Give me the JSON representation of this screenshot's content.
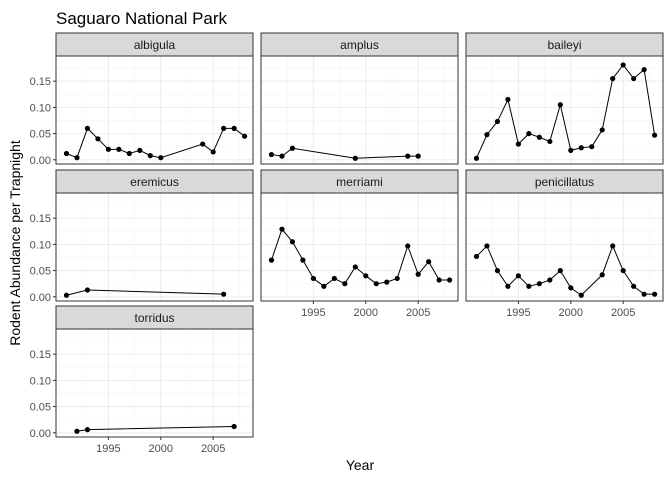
{
  "chart_data": {
    "type": "line",
    "title": "Saguaro National Park",
    "xlabel": "Year",
    "ylabel": "Rodent Abundance per Trapnight",
    "xlim": [
      1990,
      2008.8
    ],
    "ylim": [
      -0.008,
      0.198
    ],
    "x_ticks": [
      1995,
      2000,
      2005
    ],
    "y_ticks": [
      0.0,
      0.05,
      0.1,
      0.15
    ],
    "y_tick_labels": [
      "0.00",
      "0.05",
      "0.10",
      "0.15"
    ],
    "grid": true,
    "facets": [
      {
        "name": "albigula",
        "x": [
          1991,
          1992,
          1993,
          1994,
          1995,
          1996,
          1997,
          1998,
          1999,
          2000,
          2004,
          2005,
          2006,
          2007,
          2008
        ],
        "y": [
          0.012,
          0.004,
          0.06,
          0.04,
          0.02,
          0.02,
          0.012,
          0.018,
          0.008,
          0.004,
          0.03,
          0.015,
          0.06,
          0.06,
          0.045
        ]
      },
      {
        "name": "amplus",
        "x": [
          1991,
          1992,
          1993,
          1999,
          2004,
          2005
        ],
        "y": [
          0.01,
          0.007,
          0.022,
          0.003,
          0.007,
          0.007
        ]
      },
      {
        "name": "baileyi",
        "x": [
          1991,
          1992,
          1993,
          1994,
          1995,
          1996,
          1997,
          1998,
          1999,
          2000,
          2001,
          2002,
          2003,
          2004,
          2005,
          2006,
          2007,
          2008
        ],
        "y": [
          0.003,
          0.048,
          0.073,
          0.115,
          0.03,
          0.05,
          0.043,
          0.035,
          0.105,
          0.018,
          0.023,
          0.025,
          0.057,
          0.155,
          0.181,
          0.155,
          0.172,
          0.047
        ]
      },
      {
        "name": "eremicus",
        "x": [
          1991,
          1993,
          2006
        ],
        "y": [
          0.003,
          0.013,
          0.005
        ]
      },
      {
        "name": "merriami",
        "x": [
          1991,
          1992,
          1993,
          1994,
          1995,
          1996,
          1997,
          1998,
          1999,
          2000,
          2001,
          2002,
          2003,
          2004,
          2005,
          2006,
          2007,
          2008
        ],
        "y": [
          0.07,
          0.129,
          0.105,
          0.07,
          0.035,
          0.02,
          0.035,
          0.025,
          0.057,
          0.04,
          0.025,
          0.028,
          0.035,
          0.097,
          0.043,
          0.067,
          0.032,
          0.032
        ]
      },
      {
        "name": "penicillatus",
        "x": [
          1991,
          1992,
          1993,
          1994,
          1995,
          1996,
          1997,
          1998,
          1999,
          2000,
          2001,
          2003,
          2004,
          2005,
          2006,
          2007,
          2008
        ],
        "y": [
          0.077,
          0.097,
          0.05,
          0.02,
          0.04,
          0.02,
          0.025,
          0.032,
          0.05,
          0.017,
          0.003,
          0.042,
          0.097,
          0.05,
          0.02,
          0.005,
          0.005
        ]
      },
      {
        "name": "torridus",
        "x": [
          1992,
          1993,
          2007
        ],
        "y": [
          0.003,
          0.006,
          0.012
        ]
      }
    ]
  }
}
